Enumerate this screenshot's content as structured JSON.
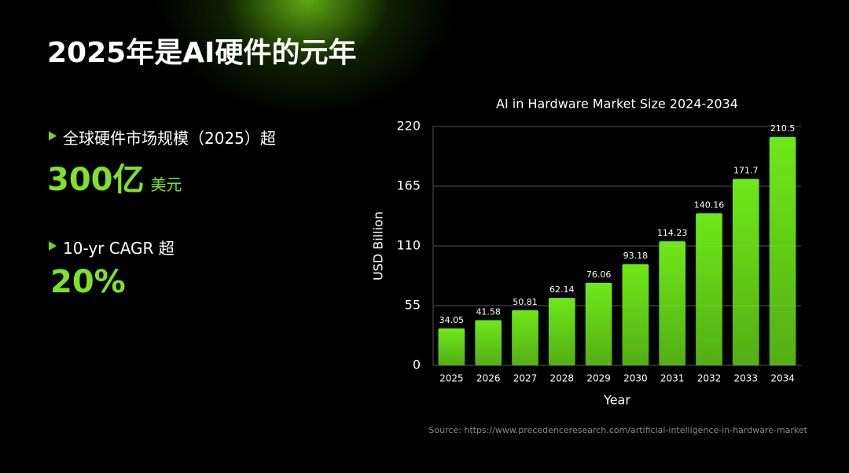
{
  "slide": {
    "title": "2025年是AI硬件的元年",
    "points": [
      {
        "label": "全球硬件市场规模（2025）超",
        "value": "300亿",
        "unit": "美元"
      },
      {
        "label": "10-yr CAGR 超",
        "value": "20%"
      }
    ],
    "source": "Source: https://www.precedenceresearch.com/artificial-intelligence-in-hardware-market"
  },
  "chart_data": {
    "type": "bar",
    "title": "AI in Hardware Market Size 2024-2034",
    "x_label": "Year",
    "y_label": "USD Billion",
    "categories": [
      "2025",
      "2026",
      "2027",
      "2028",
      "2029",
      "2030",
      "2031",
      "2032",
      "2033",
      "2034"
    ],
    "values": [
      34.05,
      41.58,
      50.81,
      62.14,
      76.06,
      93.18,
      114.23,
      140.16,
      171.7,
      210.5
    ],
    "color": "#6fe81a",
    "ylim": [
      0,
      220
    ],
    "yticks": [
      0,
      55,
      110,
      165,
      220
    ],
    "grid": true
  }
}
